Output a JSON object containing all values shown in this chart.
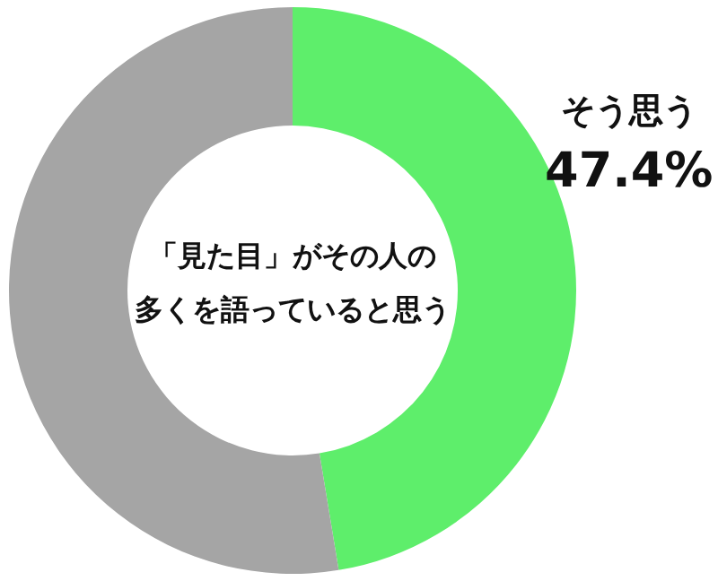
{
  "chart_data": {
    "type": "donut",
    "title": "「見た目」がその人の多くを語っていると思う",
    "categories": [
      "そう思う",
      null
    ],
    "values": [
      47.4,
      52.6
    ],
    "colors": [
      "#5eee6b",
      "#a5a5a5"
    ],
    "value_labels": [
      "47.4%",
      null
    ]
  }
}
